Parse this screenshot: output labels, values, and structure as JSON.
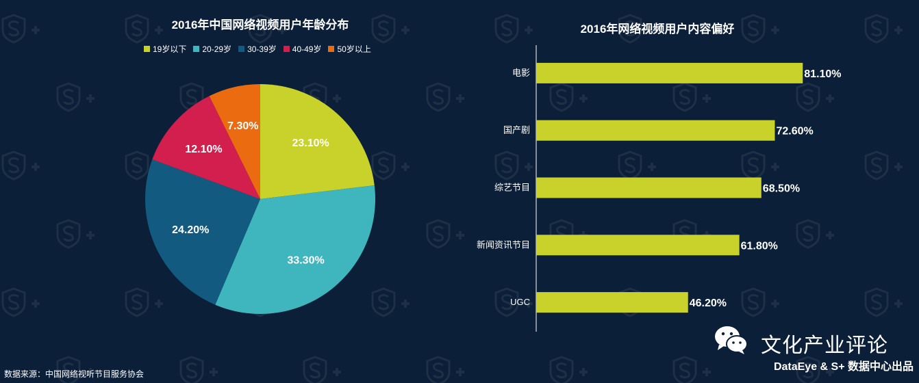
{
  "pie_chart": {
    "title": "2016年中国网络视频用户年龄分布",
    "legend": [
      {
        "label": "19岁以下",
        "color": "#c8d22a"
      },
      {
        "label": "20-29岁",
        "color": "#3fb6be"
      },
      {
        "label": "30-39岁",
        "color": "#125a80"
      },
      {
        "label": "40-49岁",
        "color": "#d21f4d"
      },
      {
        "label": "50岁以上",
        "color": "#ea6b10"
      }
    ]
  },
  "bar_chart": {
    "title": "2016年网络视频用户内容偏好"
  },
  "chart_data": [
    {
      "type": "pie",
      "title": "2016年中国网络视频用户年龄分布",
      "categories": [
        "19岁以下",
        "20-29岁",
        "30-39岁",
        "40-49岁",
        "50岁以上"
      ],
      "values": [
        23.1,
        33.3,
        24.2,
        12.1,
        7.3
      ],
      "labels": [
        "23.10%",
        "33.30%",
        "24.20%",
        "12.10%",
        "7.30%"
      ],
      "colors": [
        "#c8d22a",
        "#3fb6be",
        "#125a80",
        "#d21f4d",
        "#ea6b10"
      ],
      "legend_position": "top"
    },
    {
      "type": "bar",
      "orientation": "horizontal",
      "title": "2016年网络视频用户内容偏好",
      "categories": [
        "电影",
        "国产剧",
        "综艺节目",
        "新闻资讯节目",
        "UGC"
      ],
      "values": [
        81.1,
        72.6,
        68.5,
        61.8,
        46.2
      ],
      "labels": [
        "81.10%",
        "72.60%",
        "68.50%",
        "61.80%",
        "46.20%"
      ],
      "color": "#c8d22a",
      "xlim": [
        0,
        100
      ]
    }
  ],
  "footer": {
    "source": "数据来源：中国网络视听节目服务协会",
    "brand": "文化产业评论",
    "credit": "DataEye & S+ 数据中心出品"
  },
  "icons": {
    "brand_icon": "wechat-icon",
    "watermark": "s-plus-shield-logo"
  }
}
